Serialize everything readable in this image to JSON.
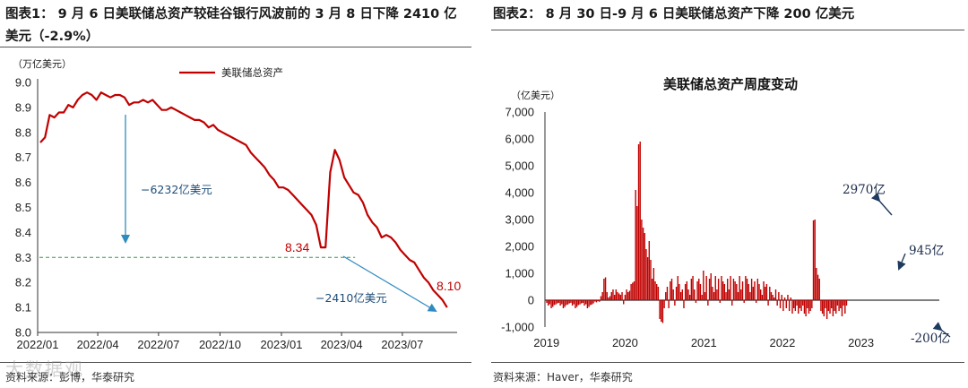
{
  "figure1": {
    "title": "图表1： 9 月 6 日美联储总资产较硅谷银行风波前的 3 月 8 日下降 2410 亿美元（-2.9%）",
    "source": "资料来源：彭博，华泰研究",
    "watermark": "大数据观"
  },
  "figure2": {
    "title": "图表2： 8 月 30 日-9 月 6 日美联储总资产下降 200 亿美元",
    "source": "资料来源：Haver，华泰研究"
  },
  "colors": {
    "series": "#c00000",
    "arrow": "#2e8bc0",
    "dashed": "#2e9e4e",
    "annotation_arrow": "#1f3a5f"
  },
  "chart_data": [
    {
      "type": "line",
      "unit_label": "（万亿美元）",
      "ylim": [
        8.0,
        9.0
      ],
      "yticks": [
        "8.0",
        "8.1",
        "8.2",
        "8.3",
        "8.4",
        "8.5",
        "8.6",
        "8.7",
        "8.8",
        "8.9",
        "9.0"
      ],
      "xticks": [
        "2022/01",
        "2022/04",
        "2022/07",
        "2022/10",
        "2023/01",
        "2023/04",
        "2023/07"
      ],
      "grid": false,
      "legend_position": "top-right",
      "series": [
        {
          "name": "美联储总资产",
          "x": [
            "2022-01-05",
            "2022-01-12",
            "2022-01-19",
            "2022-01-26",
            "2022-02-02",
            "2022-02-09",
            "2022-02-16",
            "2022-02-23",
            "2022-03-02",
            "2022-03-09",
            "2022-03-16",
            "2022-03-23",
            "2022-03-30",
            "2022-04-06",
            "2022-04-13",
            "2022-04-20",
            "2022-04-27",
            "2022-05-04",
            "2022-05-11",
            "2022-05-18",
            "2022-05-25",
            "2022-06-01",
            "2022-06-08",
            "2022-06-15",
            "2022-06-22",
            "2022-06-29",
            "2022-07-06",
            "2022-07-13",
            "2022-07-20",
            "2022-07-27",
            "2022-08-03",
            "2022-08-10",
            "2022-08-17",
            "2022-08-24",
            "2022-08-31",
            "2022-09-07",
            "2022-09-14",
            "2022-09-21",
            "2022-09-28",
            "2022-10-05",
            "2022-10-12",
            "2022-10-19",
            "2022-10-26",
            "2022-11-02",
            "2022-11-09",
            "2022-11-16",
            "2022-11-23",
            "2022-11-30",
            "2022-12-07",
            "2022-12-14",
            "2022-12-21",
            "2022-12-28",
            "2023-01-04",
            "2023-01-11",
            "2023-01-18",
            "2023-01-25",
            "2023-02-01",
            "2023-02-08",
            "2023-02-15",
            "2023-02-22",
            "2023-03-01",
            "2023-03-08",
            "2023-03-15",
            "2023-03-22",
            "2023-03-29",
            "2023-04-05",
            "2023-04-12",
            "2023-04-19",
            "2023-04-26",
            "2023-05-03",
            "2023-05-10",
            "2023-05-17",
            "2023-05-24",
            "2023-05-31",
            "2023-06-07",
            "2023-06-14",
            "2023-06-21",
            "2023-06-28",
            "2023-07-05",
            "2023-07-12",
            "2023-07-19",
            "2023-07-26",
            "2023-08-02",
            "2023-08-09",
            "2023-08-16",
            "2023-08-23",
            "2023-08-30",
            "2023-09-06"
          ],
          "values": [
            8.76,
            8.78,
            8.87,
            8.86,
            8.88,
            8.88,
            8.91,
            8.9,
            8.93,
            8.95,
            8.96,
            8.95,
            8.93,
            8.96,
            8.95,
            8.94,
            8.95,
            8.95,
            8.94,
            8.91,
            8.92,
            8.92,
            8.93,
            8.92,
            8.93,
            8.91,
            8.89,
            8.89,
            8.9,
            8.89,
            8.88,
            8.87,
            8.86,
            8.85,
            8.85,
            8.84,
            8.82,
            8.83,
            8.81,
            8.8,
            8.79,
            8.78,
            8.77,
            8.76,
            8.75,
            8.72,
            8.7,
            8.68,
            8.66,
            8.63,
            8.61,
            8.58,
            8.58,
            8.57,
            8.55,
            8.53,
            8.51,
            8.49,
            8.47,
            8.43,
            8.34,
            8.34,
            8.64,
            8.73,
            8.69,
            8.62,
            8.59,
            8.56,
            8.55,
            8.52,
            8.47,
            8.44,
            8.42,
            8.38,
            8.39,
            8.38,
            8.36,
            8.33,
            8.31,
            8.29,
            8.28,
            8.25,
            8.22,
            8.2,
            8.17,
            8.15,
            8.13,
            8.1
          ]
        }
      ],
      "annotations": {
        "drop_total": "−6232亿美元",
        "drop_since_svb": "−2410亿美元",
        "value_march": "8.34",
        "value_latest": "8.10",
        "dashed_level": 8.3
      }
    },
    {
      "type": "bar",
      "title": "美联储总资产周度变动",
      "unit_label": "（亿美元）",
      "ylim": [
        -1000,
        7000
      ],
      "yticks": [
        "-1,000",
        "0",
        "1,000",
        "2,000",
        "3,000",
        "4,000",
        "5,000",
        "6,000",
        "7,000"
      ],
      "xticks": [
        "2019",
        "2020",
        "2021",
        "2022",
        "2023"
      ],
      "grid": false,
      "series": [
        {
          "name": "",
          "x_start": "2019-01-02",
          "frequency": "weekly",
          "values": [
            -100,
            -200,
            -150,
            -300,
            -250,
            -180,
            -160,
            -120,
            -100,
            -200,
            -150,
            -300,
            -250,
            -180,
            -160,
            -120,
            -100,
            -200,
            -150,
            -300,
            -250,
            -180,
            -160,
            -120,
            -100,
            -200,
            -150,
            -300,
            -250,
            -180,
            -160,
            -120,
            -50,
            -80,
            -40,
            -60,
            150,
            300,
            800,
            850,
            300,
            100,
            150,
            300,
            400,
            200,
            400,
            300,
            250,
            200,
            300,
            -150,
            200,
            400,
            300,
            350,
            600,
            650,
            700,
            4100,
            3500,
            5800,
            5900,
            3000,
            2700,
            2500,
            1900,
            1600,
            2200,
            1500,
            800,
            1200,
            700,
            600,
            500,
            -700,
            -800,
            -850,
            -300,
            300,
            500,
            -300,
            700,
            800,
            400,
            -200,
            500,
            900,
            600,
            300,
            400,
            -300,
            600,
            700,
            400,
            200,
            800,
            900,
            400,
            -100,
            700,
            800,
            600,
            200,
            1100,
            300,
            900,
            -200,
            800,
            1000,
            500,
            300,
            900,
            400,
            800,
            -100,
            900,
            700,
            600,
            300,
            800,
            400,
            900,
            -200,
            800,
            700,
            600,
            300,
            900,
            400,
            700,
            -100,
            900,
            800,
            600,
            300,
            800,
            500,
            700,
            -100,
            800,
            600,
            400,
            200,
            700,
            500,
            600,
            -200,
            500,
            300,
            200,
            100,
            400,
            -200,
            300,
            -300,
            200,
            -400,
            100,
            -300,
            200,
            -400,
            100,
            -500,
            -300,
            -400,
            -200,
            -500,
            -300,
            -400,
            -200,
            -500,
            -600,
            -300,
            -500,
            -400,
            -300,
            2970,
            3000,
            1200,
            945,
            800,
            -400,
            -500,
            -600,
            -300,
            -700,
            -400,
            -500,
            -300,
            -600,
            -400,
            -500,
            -200,
            -400,
            -300,
            -600,
            -200,
            -500,
            -200
          ]
        }
      ],
      "annotations": {
        "peak_label": "2970亿",
        "second_label": "945亿",
        "latest_label": "-200亿"
      }
    }
  ]
}
